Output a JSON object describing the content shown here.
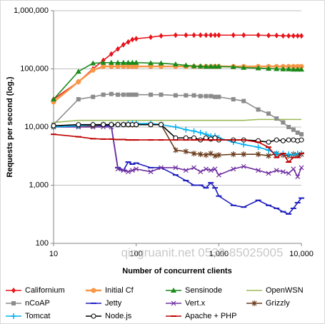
{
  "chart_data": {
    "type": "line",
    "x_label": "Number of concurrent clients",
    "y_label": "Requests per second (log.)",
    "watermark": "qingruanit.net 0532-85025005",
    "log_x": true,
    "log_y": true,
    "grid": true,
    "legend": "bottom",
    "xlim": [
      10,
      10000
    ],
    "xticks": [
      10,
      100,
      {
        "value": 1000,
        "label": "1,000"
      },
      {
        "value": 10000,
        "label": "10,000"
      }
    ],
    "ylim": [
      100,
      1000000
    ],
    "yticks": [
      100,
      {
        "value": 1000,
        "label": "1,000"
      },
      {
        "value": 10000,
        "label": "10,000"
      },
      {
        "value": 100000,
        "label": "100,000"
      },
      {
        "value": 1000000,
        "label": "1,000,000"
      }
    ],
    "x": [
      10,
      20,
      30,
      40,
      50,
      60,
      70,
      80,
      90,
      100,
      150,
      200,
      300,
      400,
      500,
      600,
      700,
      800,
      900,
      1000,
      1500,
      2000,
      3000,
      4000,
      5000,
      6000,
      7000,
      8000,
      9000,
      10000
    ],
    "series": [
      {
        "name": "Californium",
        "color": "#e8141c",
        "marker": "diamond",
        "values": [
          30000,
          60000,
          100000,
          140000,
          180000,
          220000,
          260000,
          290000,
          320000,
          330000,
          350000,
          370000,
          380000,
          380000,
          380000,
          380000,
          380000,
          380000,
          380000,
          380000,
          380000,
          380000,
          380000,
          375000,
          375000,
          370000,
          370000,
          370000,
          370000,
          370000
        ]
      },
      {
        "name": "Initial Cf",
        "color": "#f79646",
        "marker": "circle",
        "values": [
          27000,
          60000,
          95000,
          110000,
          110000,
          110000,
          110000,
          110000,
          110000,
          110000,
          110000,
          110000,
          110000,
          110000,
          110000,
          110000,
          110000,
          110000,
          110000,
          110000,
          110000,
          110000,
          110000,
          110000,
          110000,
          110000,
          110000,
          110000,
          110000,
          110000
        ]
      },
      {
        "name": "Sensinode",
        "color": "#1a8a1a",
        "marker": "triangle",
        "values": [
          30000,
          90000,
          125000,
          128000,
          128000,
          128000,
          128000,
          128000,
          128000,
          128000,
          126000,
          125000,
          120000,
          115000,
          112000,
          111000,
          110000,
          110000,
          110000,
          110000,
          108000,
          105000,
          103000,
          101000,
          100000,
          99000,
          99000,
          98000,
          98000,
          98000
        ]
      },
      {
        "name": "OpenWSN",
        "color": "#9bbb59",
        "marker": "none",
        "values": [
          12000,
          13000,
          13000,
          13000,
          13000,
          13000,
          13000,
          13000,
          13000,
          13000,
          13000,
          13000,
          13000,
          13000,
          13000,
          13000,
          13000,
          13000,
          13000,
          13000,
          13000,
          13000,
          13500,
          13500,
          13500,
          13500,
          13500,
          13500,
          13500,
          13500
        ]
      },
      {
        "name": "nCoAP",
        "color": "#8c8c8c",
        "marker": "square",
        "values": [
          11000,
          30000,
          33000,
          36000,
          37000,
          36000,
          36000,
          36000,
          36000,
          36000,
          36000,
          36000,
          35000,
          35000,
          35000,
          34000,
          34000,
          34000,
          33000,
          33000,
          30000,
          28000,
          20000,
          17000,
          14000,
          12000,
          10000,
          9000,
          8000,
          7500
        ]
      },
      {
        "name": "Jetty",
        "color": "#1f1fbf",
        "marker": "dash",
        "values": [
          10000,
          10500,
          10500,
          10500,
          10500,
          2000,
          1800,
          2500,
          2300,
          2400,
          2000,
          2000,
          1500,
          1200,
          1000,
          1000,
          900,
          1100,
          900,
          650,
          450,
          420,
          550,
          450,
          400,
          350,
          320,
          400,
          500,
          600
        ]
      },
      {
        "name": "Vert.x",
        "color": "#7030a0",
        "marker": "x",
        "values": [
          10000,
          10000,
          10000,
          10000,
          10000,
          1900,
          1800,
          1700,
          1800,
          1900,
          1700,
          2000,
          2000,
          1800,
          2000,
          1700,
          1900,
          1800,
          1900,
          1500,
          1900,
          2100,
          1800,
          1600,
          1800,
          1700,
          1600,
          1900,
          1400,
          2000
        ]
      },
      {
        "name": "Grizzly",
        "color": "#6b3a1a",
        "marker": "star",
        "values": [
          10000,
          10500,
          10500,
          11000,
          11000,
          11000,
          11000,
          11000,
          11000,
          11000,
          11000,
          11000,
          4000,
          3800,
          3500,
          3400,
          3300,
          3500,
          3200,
          3300,
          3400,
          3400,
          3400,
          3200,
          3500,
          3300,
          3200,
          3400,
          3300,
          3400
        ]
      },
      {
        "name": "Tomcat",
        "color": "#00b0f0",
        "marker": "plus",
        "values": [
          10000,
          10500,
          11000,
          11000,
          11000,
          11000,
          11000,
          11500,
          11500,
          11500,
          11500,
          11000,
          10000,
          9000,
          8500,
          8000,
          7500,
          7000,
          7000,
          6500,
          5500,
          5000,
          4500,
          4000,
          3500,
          3500,
          3400,
          3300,
          3500,
          3500
        ]
      },
      {
        "name": "Node.js",
        "color": "#000000",
        "marker": "circle",
        "values": [
          10500,
          11000,
          11000,
          11000,
          11000,
          11000,
          11000,
          11000,
          11000,
          11000,
          11000,
          11000,
          6500,
          6500,
          6500,
          6000,
          6500,
          6200,
          6500,
          6000,
          6000,
          6000,
          5800,
          5500,
          6000,
          5800,
          6000,
          6000,
          5800,
          6000
        ]
      },
      {
        "name": "Apache + PHP",
        "color": "#c00000",
        "marker": "dash",
        "values": [
          7500,
          6800,
          6300,
          6200,
          6200,
          6100,
          6100,
          6000,
          6000,
          6000,
          6000,
          6000,
          6000,
          6000,
          6000,
          6000,
          6000,
          6000,
          6000,
          6000,
          6000,
          6000,
          5500,
          4500,
          3000,
          3500,
          2500,
          3000,
          3000,
          3500
        ]
      }
    ]
  }
}
